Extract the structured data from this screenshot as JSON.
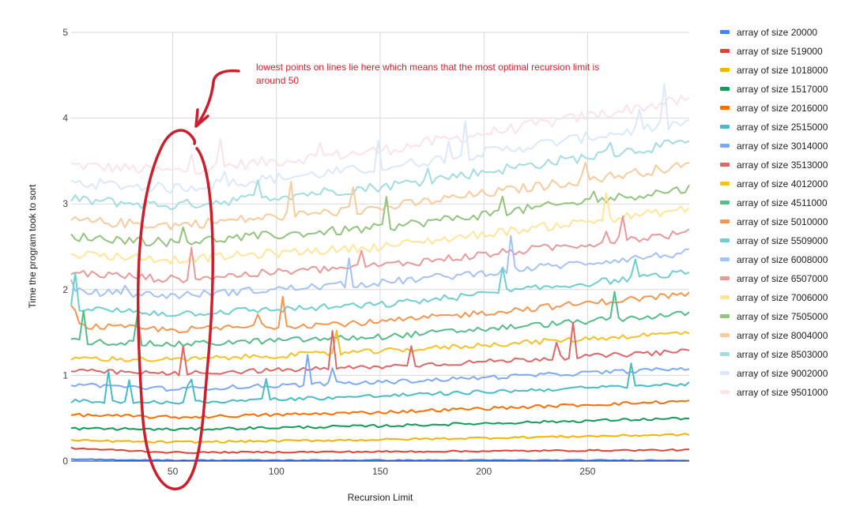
{
  "chart_data": {
    "type": "line",
    "title": "",
    "xlabel": "Recursion Limit",
    "ylabel": "Time the program took to sort",
    "xlim": [
      1,
      299
    ],
    "ylim": [
      0,
      5
    ],
    "x_ticks": [
      "50",
      "100",
      "150",
      "200",
      "250"
    ],
    "y_ticks": [
      "0",
      "1",
      "2",
      "3",
      "4",
      "5"
    ],
    "grid": true,
    "legend_position": "right",
    "annotation": {
      "lines": [
        "lowest points on lines lie here which means that the most optimal recursion limit is",
        "around 50"
      ],
      "circled_x": 50
    },
    "series": [
      {
        "name": "array of size 20000",
        "color": "#4285f4",
        "trend": [
          [
            1,
            0.02
          ],
          [
            50,
            0.01
          ],
          [
            299,
            0.01
          ]
        ]
      },
      {
        "name": "array of size 519000",
        "color": "#db4437",
        "trend": [
          [
            1,
            0.15
          ],
          [
            50,
            0.1
          ],
          [
            150,
            0.11
          ],
          [
            299,
            0.13
          ]
        ]
      },
      {
        "name": "array of size 1018000",
        "color": "#f4b400",
        "trend": [
          [
            1,
            0.24
          ],
          [
            50,
            0.22
          ],
          [
            150,
            0.25
          ],
          [
            299,
            0.31
          ]
        ]
      },
      {
        "name": "array of size 1517000",
        "color": "#0f9d58",
        "trend": [
          [
            1,
            0.38
          ],
          [
            50,
            0.37
          ],
          [
            150,
            0.41
          ],
          [
            299,
            0.5
          ]
        ]
      },
      {
        "name": "array of size 2016000",
        "color": "#ff6d01",
        "trend": [
          [
            1,
            0.54
          ],
          [
            50,
            0.51
          ],
          [
            150,
            0.57
          ],
          [
            299,
            0.7
          ]
        ]
      },
      {
        "name": "array of size 2515000",
        "color": "#46bdc6",
        "trend": [
          [
            1,
            0.7
          ],
          [
            50,
            0.68
          ],
          [
            150,
            0.76
          ],
          [
            299,
            0.9
          ]
        ]
      },
      {
        "name": "array of size 3014000",
        "color": "#7baaf7",
        "trend": [
          [
            1,
            0.9
          ],
          [
            50,
            0.84
          ],
          [
            150,
            0.92
          ],
          [
            299,
            1.08
          ]
        ]
      },
      {
        "name": "array of size 3513000",
        "color": "#e06666",
        "trend": [
          [
            1,
            1.05
          ],
          [
            50,
            1.02
          ],
          [
            150,
            1.1
          ],
          [
            299,
            1.28
          ]
        ]
      },
      {
        "name": "array of size 4012000",
        "color": "#f6c026",
        "trend": [
          [
            1,
            1.2
          ],
          [
            50,
            1.18
          ],
          [
            150,
            1.28
          ],
          [
            299,
            1.5
          ]
        ]
      },
      {
        "name": "array of size 4511000",
        "color": "#57bb8a",
        "trend": [
          [
            1,
            1.4
          ],
          [
            50,
            1.36
          ],
          [
            150,
            1.45
          ],
          [
            299,
            1.72
          ]
        ]
      },
      {
        "name": "array of size 5010000",
        "color": "#f5964f",
        "trend": [
          [
            1,
            1.58
          ],
          [
            50,
            1.53
          ],
          [
            150,
            1.62
          ],
          [
            299,
            1.95
          ]
        ]
      },
      {
        "name": "array of size 5509000",
        "color": "#6fcfcf",
        "trend": [
          [
            1,
            1.78
          ],
          [
            50,
            1.72
          ],
          [
            150,
            1.82
          ],
          [
            299,
            2.2
          ]
        ]
      },
      {
        "name": "array of size 6008000",
        "color": "#a4c2f4",
        "trend": [
          [
            1,
            1.98
          ],
          [
            50,
            1.93
          ],
          [
            150,
            2.08
          ],
          [
            299,
            2.43
          ]
        ]
      },
      {
        "name": "array of size 6507000",
        "color": "#ea9999",
        "trend": [
          [
            1,
            2.2
          ],
          [
            50,
            2.12
          ],
          [
            150,
            2.28
          ],
          [
            299,
            2.66
          ]
        ]
      },
      {
        "name": "array of size 7006000",
        "color": "#ffe599",
        "trend": [
          [
            1,
            2.42
          ],
          [
            50,
            2.35
          ],
          [
            150,
            2.5
          ],
          [
            299,
            2.94
          ]
        ]
      },
      {
        "name": "array of size 7505000",
        "color": "#93c47d",
        "trend": [
          [
            1,
            2.62
          ],
          [
            50,
            2.55
          ],
          [
            150,
            2.72
          ],
          [
            299,
            3.18
          ]
        ]
      },
      {
        "name": "array of size 8004000",
        "color": "#f9cb9c",
        "trend": [
          [
            1,
            2.8
          ],
          [
            50,
            2.75
          ],
          [
            150,
            2.95
          ],
          [
            299,
            3.45
          ]
        ]
      },
      {
        "name": "array of size 8503000",
        "color": "#a2dde0",
        "trend": [
          [
            1,
            3.05
          ],
          [
            50,
            2.98
          ],
          [
            150,
            3.2
          ],
          [
            299,
            3.72
          ]
        ]
      },
      {
        "name": "array of size 9002000",
        "color": "#dbe8fb",
        "trend": [
          [
            1,
            3.25
          ],
          [
            50,
            3.18
          ],
          [
            150,
            3.42
          ],
          [
            299,
            3.95
          ]
        ]
      },
      {
        "name": "array of size 9501000",
        "color": "#fbe3e6",
        "trend": [
          [
            1,
            3.45
          ],
          [
            50,
            3.38
          ],
          [
            150,
            3.62
          ],
          [
            299,
            4.22
          ]
        ]
      }
    ]
  }
}
